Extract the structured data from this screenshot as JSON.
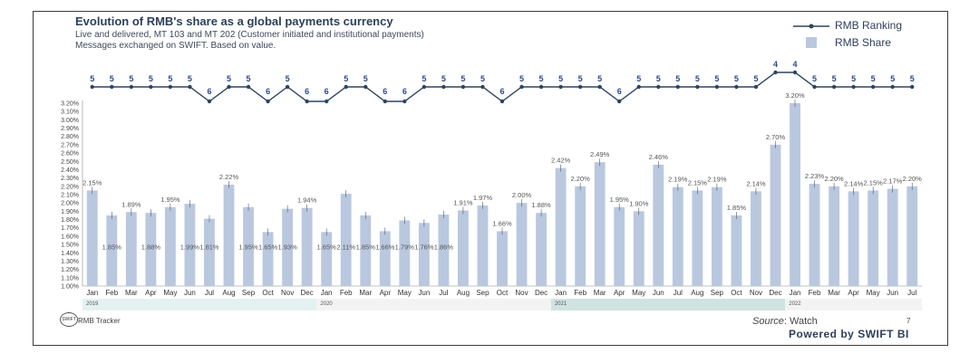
{
  "header": {
    "title": "Evolution of RMB's share as a global payments currency",
    "subtitle1": "Live and delivered, MT 103 and MT 202 (Customer initiated and institutional payments)",
    "subtitle2": "Messages exchanged on SWIFT. Based on value."
  },
  "legend": {
    "ranking": "RMB Ranking",
    "share": "RMB Share"
  },
  "footer": {
    "tracker": "RMB Tracker",
    "logo_text": "SWIFT",
    "source_label": "Source",
    "source_value": ": Watch",
    "page": "7",
    "powered": "Powered by SWIFT BI"
  },
  "colors": {
    "bar": "#b9c8df",
    "line": "#2d4560",
    "label_line": "#2d4b8e",
    "text": "#2d3f5a"
  },
  "chart_data": {
    "type": "bar",
    "title": "Evolution of RMB's share as a global payments currency",
    "categories": [
      "Jan",
      "Feb",
      "Mar",
      "Apr",
      "May",
      "Jun",
      "Jul",
      "Aug",
      "Sep",
      "Oct",
      "Nov",
      "Dec",
      "Jan",
      "Feb",
      "Mar",
      "Apr",
      "May",
      "Jun",
      "Jul",
      "Aug",
      "Sep",
      "Oct",
      "Nov",
      "Dec",
      "Jan",
      "Feb",
      "Mar",
      "Apr",
      "May",
      "Jun",
      "Jul",
      "Aug",
      "Sep",
      "Oct",
      "Nov",
      "Dec",
      "Jan",
      "Feb",
      "Mar",
      "Apr",
      "May",
      "Jun",
      "Jul"
    ],
    "years": [
      {
        "label": "2019",
        "start": 0,
        "end": 12,
        "color": "#e4f1f1"
      },
      {
        "label": "2020",
        "start": 12,
        "end": 24,
        "color": "#f3f3f3"
      },
      {
        "label": "2021",
        "start": 24,
        "end": 36,
        "color": "#cfe3e1"
      },
      {
        "label": "2022",
        "start": 36,
        "end": 43,
        "color": "#f3f3f3"
      }
    ],
    "series": [
      {
        "name": "RMB Share",
        "type": "bar",
        "values": [
          2.15,
          1.85,
          1.89,
          1.88,
          1.95,
          1.99,
          1.81,
          2.22,
          1.95,
          1.65,
          1.93,
          1.94,
          1.65,
          2.11,
          1.85,
          1.66,
          1.79,
          1.76,
          1.86,
          1.91,
          1.97,
          1.66,
          2.0,
          1.88,
          2.42,
          2.2,
          2.49,
          1.95,
          1.9,
          2.46,
          2.19,
          2.15,
          2.19,
          1.85,
          2.14,
          2.7,
          3.2,
          2.23,
          2.2,
          2.14,
          2.15,
          2.17,
          2.2
        ],
        "labels": [
          "2.15%",
          "1.85%",
          "1.89%",
          "1.88%",
          "1.95%",
          "1.99%",
          "1.81%",
          "2.22%",
          "1.95%",
          "1.65%",
          "1.93%",
          "1.94%",
          "1.65%",
          "2.11%",
          "1.85%",
          "1.66%",
          "1.79%",
          "1.76%",
          "1.86%",
          "1.91%",
          "1.97%",
          "1.66%",
          "2.00%",
          "1.88%",
          "2.42%",
          "2.20%",
          "2.49%",
          "1.95%",
          "1.90%",
          "2.46%",
          "2.19%",
          "2.15%",
          "2.19%",
          "1.85%",
          "2.14%",
          "2.70%",
          "3.20%",
          "2.23%",
          "2.20%",
          "2.14%",
          "2.15%",
          "2.17%",
          "2.20%"
        ],
        "label_inside": [
          false,
          true,
          false,
          true,
          false,
          true,
          true,
          false,
          true,
          true,
          true,
          false,
          true,
          true,
          true,
          true,
          true,
          true,
          true,
          false,
          false,
          false,
          false,
          false,
          false,
          false,
          false,
          false,
          false,
          false,
          false,
          false,
          false,
          false,
          false,
          false,
          false,
          false,
          false,
          false,
          false,
          false,
          false
        ]
      },
      {
        "name": "RMB Ranking",
        "type": "line",
        "values": [
          5,
          5,
          5,
          5,
          5,
          5,
          6,
          5,
          5,
          6,
          5,
          6,
          6,
          5,
          5,
          6,
          6,
          5,
          5,
          5,
          5,
          6,
          5,
          5,
          5,
          5,
          5,
          6,
          5,
          5,
          5,
          5,
          5,
          5,
          5,
          4,
          4,
          5,
          5,
          5,
          5,
          5,
          5
        ]
      }
    ],
    "ylim": [
      1.0,
      3.2
    ],
    "yticks": [
      "1.00%",
      "1.10%",
      "1.20%",
      "1.30%",
      "1.40%",
      "1.50%",
      "1.60%",
      "1.70%",
      "1.80%",
      "1.90%",
      "2.00%",
      "2.10%",
      "2.20%",
      "2.30%",
      "2.40%",
      "2.50%",
      "2.60%",
      "2.70%",
      "2.80%",
      "2.90%",
      "3.00%",
      "3.10%",
      "3.20%"
    ],
    "xlabel": "",
    "ylabel": "",
    "grid": false,
    "legend_position": "top-right"
  }
}
